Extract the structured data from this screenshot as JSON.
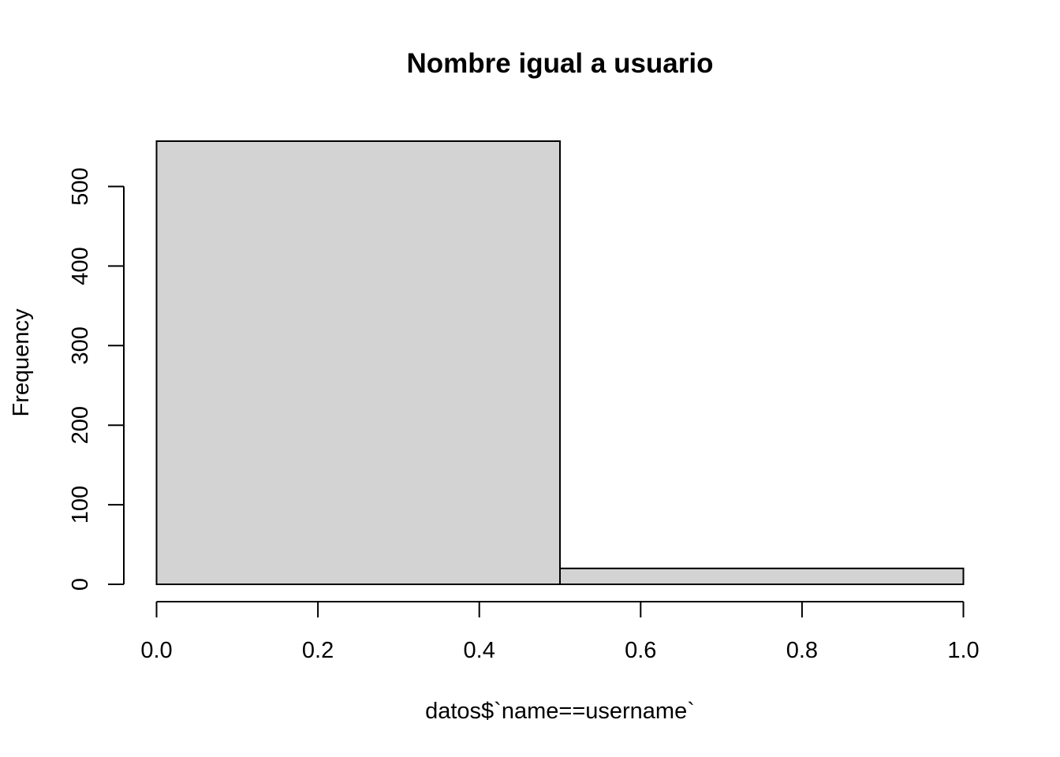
{
  "chart_data": {
    "type": "bar",
    "title": "Nombre igual a usuario",
    "xlabel": "datos$`name==username`",
    "ylabel": "Frequency",
    "bins": [
      {
        "start": 0.0,
        "end": 0.5,
        "count": 557
      },
      {
        "start": 0.5,
        "end": 1.0,
        "count": 20
      }
    ],
    "xlim": [
      0,
      1
    ],
    "ylim": [
      0,
      557
    ],
    "x_ticks": [
      0.0,
      0.2,
      0.4,
      0.6,
      0.8,
      1.0
    ],
    "x_tick_labels": [
      "0.0",
      "0.2",
      "0.4",
      "0.6",
      "0.8",
      "1.0"
    ],
    "y_ticks": [
      0,
      100,
      200,
      300,
      400,
      500
    ],
    "y_tick_labels": [
      "0",
      "100",
      "200",
      "300",
      "400",
      "500"
    ],
    "bar_color": "#d3d3d3",
    "grid": false,
    "legend": "none"
  }
}
